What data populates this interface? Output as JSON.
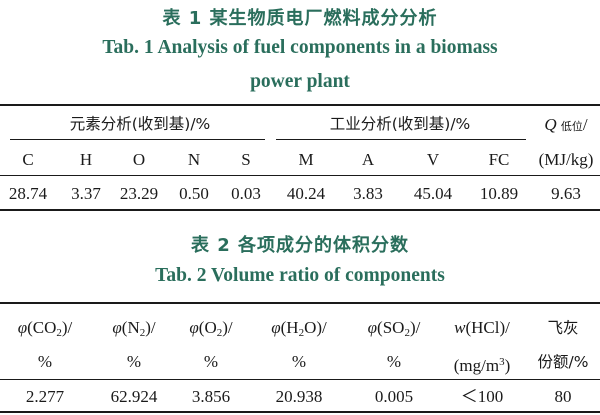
{
  "table1": {
    "caption_zh": "表 1   某生物质电厂燃料成分分析",
    "caption_en_line1": "Tab. 1    Analysis of fuel components in a biomass",
    "caption_en_line2": "power plant",
    "group_elemental": "元素分析(收到基)/%",
    "group_industrial": "工业分析(收到基)/%",
    "q_symbol": "Q",
    "q_subscript": "低位",
    "q_slash": "/",
    "q_unit": "(MJ/kg)",
    "columns": [
      "C",
      "H",
      "O",
      "N",
      "S",
      "M",
      "A",
      "V",
      "FC"
    ],
    "values": [
      "28.74",
      "3.37",
      "23.29",
      "0.50",
      "0.03",
      "40.24",
      "3.83",
      "45.04",
      "10.89",
      "9.63"
    ]
  },
  "table2": {
    "caption_zh": "表 2   各项成分的体积分数",
    "caption_en": "Tab. 2    Volume ratio of components",
    "phi": "φ",
    "w": "w",
    "headers": [
      {
        "sym": "φ",
        "pre": "(CO",
        "sub": "2",
        "post": ")/"
      },
      {
        "sym": "φ",
        "pre": "(N",
        "sub": "2",
        "post": ")/"
      },
      {
        "sym": "φ",
        "pre": "(O",
        "sub": "2",
        "post": ")/"
      },
      {
        "sym": "φ",
        "pre": "(H",
        "sub": "2",
        "post": "O)/"
      },
      {
        "sym": "φ",
        "pre": "(SO",
        "sub": "2",
        "post": ")/"
      }
    ],
    "hcl_label": "(HCl)/",
    "hcl_unit_pre": "(mg/m",
    "hcl_unit_sup": "3",
    "hcl_unit_post": ")",
    "percent": "%",
    "fly_ash_line1": "飞灰",
    "fly_ash_line2": "份额/%",
    "values": [
      "2.277",
      "62.924",
      "3.856",
      "20.938",
      "0.005",
      "＜100",
      "80"
    ]
  }
}
